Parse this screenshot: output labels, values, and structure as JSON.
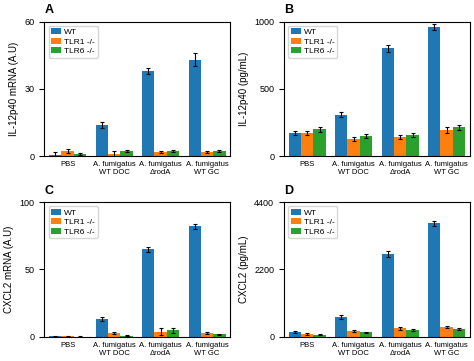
{
  "chart_data": [
    {
      "type": "bar",
      "title": "A",
      "ylabel": "IL-12p40 mRNA (A.U)",
      "categories": [
        "PBS",
        "A. fumigatus\nWT DOC",
        "A. fumigatus\nΔrodA",
        "A. fumigatus\nWT GC"
      ],
      "series": [
        {
          "name": "WT",
          "values": [
            0.5,
            14,
            38,
            43
          ],
          "errors": [
            1.5,
            1.5,
            1.5,
            3.0
          ]
        },
        {
          "name": "TLR1 -/-",
          "values": [
            2.5,
            1.0,
            2.0,
            2.0
          ],
          "errors": [
            1.0,
            1.5,
            0.5,
            0.5
          ]
        },
        {
          "name": "TLR6 -/-",
          "values": [
            1.0,
            2.5,
            2.5,
            2.5
          ],
          "errors": [
            0.5,
            0.5,
            0.5,
            0.5
          ]
        }
      ],
      "ylim": [
        0,
        60
      ],
      "yticks": [
        0,
        30,
        60
      ],
      "legend": "upper left"
    },
    {
      "type": "bar",
      "title": "B",
      "ylabel": "IL-12p40 (pg/mL)",
      "categories": [
        "PBS",
        "A. fumigatus\nWT DOC",
        "A. fumigatus\nΔrodA",
        "A. fumigatus\nWT GC"
      ],
      "series": [
        {
          "name": "WT",
          "values": [
            175,
            310,
            800,
            960
          ],
          "errors": [
            15,
            20,
            25,
            20
          ]
        },
        {
          "name": "TLR1 -/-",
          "values": [
            175,
            130,
            145,
            195
          ],
          "errors": [
            15,
            15,
            15,
            20
          ]
        },
        {
          "name": "TLR6 -/-",
          "values": [
            200,
            150,
            160,
            215
          ],
          "errors": [
            15,
            15,
            15,
            20
          ]
        }
      ],
      "ylim": [
        0,
        1000
      ],
      "yticks": [
        0,
        500,
        1000
      ],
      "legend": "upper left"
    },
    {
      "type": "bar",
      "title": "C",
      "ylabel": "CXCL2 mRNA (A.U)",
      "categories": [
        "PBS",
        "A. fumigatus\nWT DOC",
        "A. fumigatus\nΔrodA",
        "A. fumigatus\nWT GC"
      ],
      "series": [
        {
          "name": "WT",
          "values": [
            0.5,
            13,
            65,
            82
          ],
          "errors": [
            0.3,
            1.5,
            2.0,
            2.0
          ]
        },
        {
          "name": "TLR1 -/-",
          "values": [
            0.5,
            3,
            4,
            3
          ],
          "errors": [
            0.3,
            0.5,
            2.5,
            0.5
          ]
        },
        {
          "name": "TLR6 -/-",
          "values": [
            0.3,
            1,
            5,
            2
          ],
          "errors": [
            0.2,
            0.3,
            2.0,
            0.5
          ]
        }
      ],
      "ylim": [
        0,
        100
      ],
      "yticks": [
        0,
        50,
        100
      ],
      "legend": "upper left"
    },
    {
      "type": "bar",
      "title": "D",
      "ylabel": "CXCL2 (pg/mL)",
      "categories": [
        "PBS",
        "A. fumigatus\nWT DOC",
        "A. fumigatus\nΔrodA",
        "A. fumigatus\nWT GC"
      ],
      "series": [
        {
          "name": "WT",
          "values": [
            150,
            650,
            2700,
            3700
          ],
          "errors": [
            30,
            60,
            100,
            80
          ]
        },
        {
          "name": "TLR1 -/-",
          "values": [
            100,
            200,
            280,
            320
          ],
          "errors": [
            20,
            30,
            40,
            40
          ]
        },
        {
          "name": "TLR6 -/-",
          "values": [
            80,
            150,
            220,
            250
          ],
          "errors": [
            15,
            25,
            35,
            35
          ]
        }
      ],
      "ylim": [
        0,
        4400
      ],
      "yticks": [
        0,
        2200,
        4400
      ],
      "legend": "upper left"
    }
  ]
}
